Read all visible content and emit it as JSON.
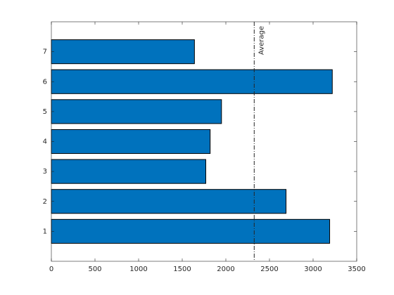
{
  "chart_data": {
    "type": "barh",
    "y": [
      1,
      2,
      3,
      4,
      5,
      6,
      7
    ],
    "values": [
      3190,
      2690,
      1770,
      1820,
      1950,
      3220,
      1640
    ],
    "color": "#0072bd",
    "xlim": [
      0,
      3500
    ],
    "xticks": [
      0,
      500,
      1000,
      1500,
      2000,
      2500,
      3000,
      3500
    ],
    "ylim": [
      0,
      8
    ],
    "yticks": [
      1,
      2,
      3,
      4,
      5,
      6,
      7
    ],
    "average": {
      "value": 2325,
      "label": "Average"
    }
  }
}
